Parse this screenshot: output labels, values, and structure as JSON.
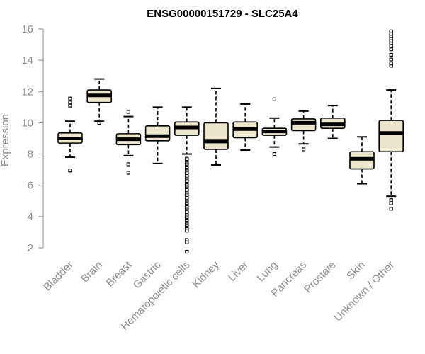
{
  "chart_data": {
    "type": "boxplot",
    "title": "ENSG00000151729 - SLC25A4",
    "ylabel": "Expression",
    "xlabel": "",
    "ylim": [
      1.5,
      16.2
    ],
    "yticks": [
      2,
      4,
      6,
      8,
      10,
      12,
      14,
      16
    ],
    "categories": [
      "Bladder",
      "Brain",
      "Breast",
      "Gastric",
      "Hematopoietic cells",
      "Kidney",
      "Liver",
      "Lung",
      "Pancreas",
      "Prostate",
      "Skin",
      "Unknown / Other"
    ],
    "box_fill": "#ede6cf",
    "box_stroke": "#000000",
    "series": [
      {
        "q1": 8.7,
        "median": 9.0,
        "q3": 9.35,
        "whisker_low": 7.8,
        "whisker_high": 10.1,
        "outliers": [
          6.95,
          11.1,
          11.3,
          11.55
        ]
      },
      {
        "q1": 11.3,
        "median": 11.75,
        "q3": 12.1,
        "whisker_low": 10.1,
        "whisker_high": 12.8,
        "outliers": [
          10.0
        ]
      },
      {
        "q1": 8.6,
        "median": 8.95,
        "q3": 9.3,
        "whisker_low": 7.9,
        "whisker_high": 10.4,
        "outliers": [
          6.8,
          7.3,
          7.35,
          10.7
        ]
      },
      {
        "q1": 8.85,
        "median": 9.15,
        "q3": 9.8,
        "whisker_low": 7.4,
        "whisker_high": 11.0,
        "outliers": []
      },
      {
        "q1": 9.2,
        "median": 9.7,
        "q3": 10.05,
        "whisker_low": 8.0,
        "whisker_high": 11.0,
        "outliers": [
          7.7,
          7.6,
          7.5,
          7.4,
          7.3,
          7.2,
          7.1,
          7.0,
          6.9,
          6.8,
          6.7,
          6.6,
          6.5,
          6.4,
          6.3,
          6.2,
          6.1,
          6.0,
          5.9,
          5.8,
          5.7,
          5.6,
          5.5,
          5.4,
          5.3,
          5.2,
          5.1,
          5.0,
          4.9,
          4.8,
          4.7,
          4.6,
          4.5,
          4.4,
          4.3,
          4.2,
          4.1,
          4.0,
          3.9,
          3.8,
          3.7,
          3.6,
          3.5,
          3.4,
          3.3,
          3.2,
          3.1,
          2.5,
          2.35,
          1.75
        ]
      },
      {
        "q1": 8.3,
        "median": 8.8,
        "q3": 10.0,
        "whisker_low": 7.3,
        "whisker_high": 12.2,
        "outliers": []
      },
      {
        "q1": 9.05,
        "median": 9.6,
        "q3": 10.05,
        "whisker_low": 8.25,
        "whisker_high": 11.2,
        "outliers": []
      },
      {
        "q1": 9.2,
        "median": 9.45,
        "q3": 9.65,
        "whisker_low": 8.45,
        "whisker_high": 10.3,
        "outliers": [
          8.0,
          11.5
        ]
      },
      {
        "q1": 9.5,
        "median": 10.0,
        "q3": 10.25,
        "whisker_low": 8.65,
        "whisker_high": 10.75,
        "outliers": [
          8.3
        ]
      },
      {
        "q1": 9.65,
        "median": 9.9,
        "q3": 10.3,
        "whisker_low": 9.0,
        "whisker_high": 11.1,
        "outliers": []
      },
      {
        "q1": 7.05,
        "median": 7.7,
        "q3": 8.15,
        "whisker_low": 6.1,
        "whisker_high": 9.1,
        "outliers": []
      },
      {
        "q1": 8.15,
        "median": 9.35,
        "q3": 10.15,
        "whisker_low": 5.3,
        "whisker_high": 12.1,
        "outliers": [
          4.5,
          4.85,
          5.05,
          13.65,
          13.8,
          14.05,
          14.35,
          14.7,
          14.9,
          15.1,
          15.25,
          15.4,
          15.55,
          15.7,
          15.85
        ]
      }
    ]
  }
}
